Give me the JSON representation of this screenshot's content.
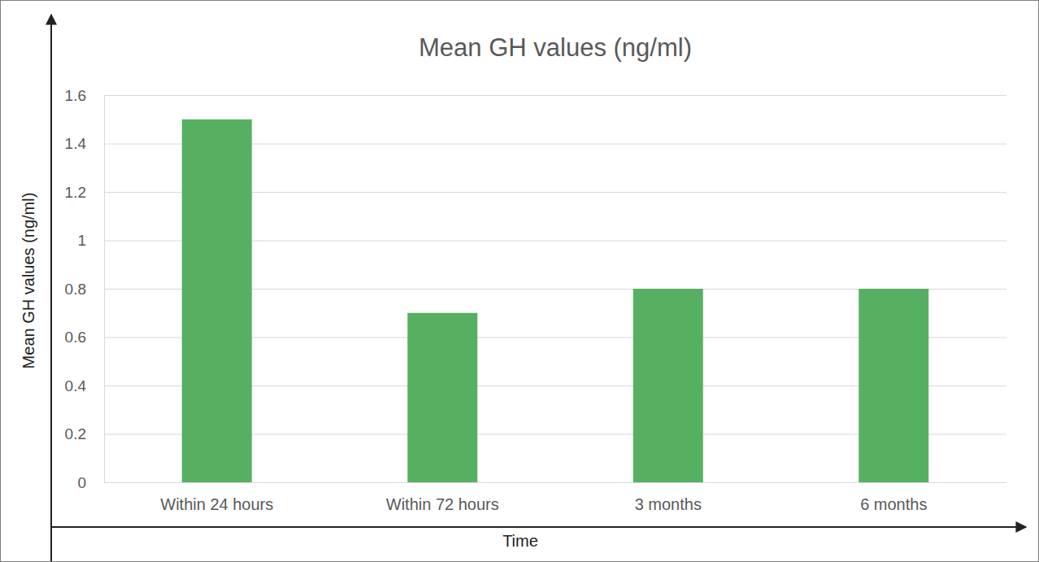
{
  "chart_data": {
    "type": "bar",
    "title": "Mean GH values (ng/ml)",
    "x_label": "Time",
    "y_label": "Mean GH values (ng/ml)",
    "categories": [
      "Within 24 hours",
      "Within 72 hours",
      "3 months",
      "6 months"
    ],
    "values": [
      1.5,
      0.7,
      0.8,
      0.8
    ],
    "color": "#57b062",
    "ylim": [
      0,
      1.6
    ],
    "yticks": [
      0,
      0.2,
      0.4,
      0.6,
      0.8,
      1,
      1.2,
      1.4,
      1.6
    ],
    "grid": true
  }
}
